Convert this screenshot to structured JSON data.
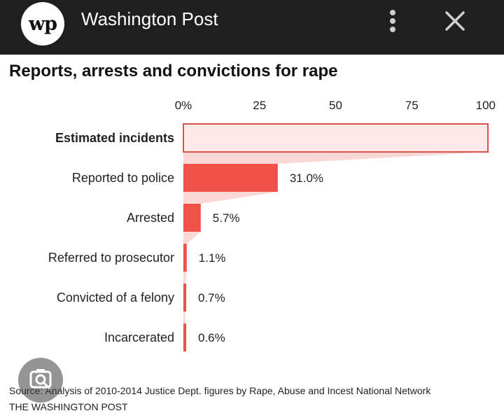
{
  "header": {
    "logo_text": "wp",
    "app_title": "Washington Post"
  },
  "icons": {
    "menu": "more-vertical-icon",
    "close": "close-icon",
    "lens": "camera-search-icon"
  },
  "colors": {
    "bar": "#f0524a",
    "bar_light": "#fde9e6",
    "funnel": "#f7b8b2",
    "bar_outline": "#d9534a"
  },
  "chart_data": {
    "type": "bar",
    "orientation": "horizontal",
    "title": "Reports, arrests and convictions for rape",
    "x_ticks": [
      "0%",
      "25",
      "50",
      "75",
      "100"
    ],
    "xlim": [
      0,
      100
    ],
    "categories": [
      "Estimated incidents",
      "Reported to police",
      "Arrested",
      "Referred to prosecutor",
      "Convicted of a felony",
      "Incarcerated"
    ],
    "values": [
      100,
      31.0,
      5.7,
      1.1,
      0.7,
      0.6
    ],
    "value_labels": [
      "",
      "31.0%",
      "5.7%",
      "1.1%",
      "0.7%",
      "0.6%"
    ]
  },
  "footer": {
    "source": "Source: Analysis of 2010-2014 Justice Dept. figures by Rape, Abuse and Incest National Network",
    "credit": "THE WASHINGTON POST"
  }
}
